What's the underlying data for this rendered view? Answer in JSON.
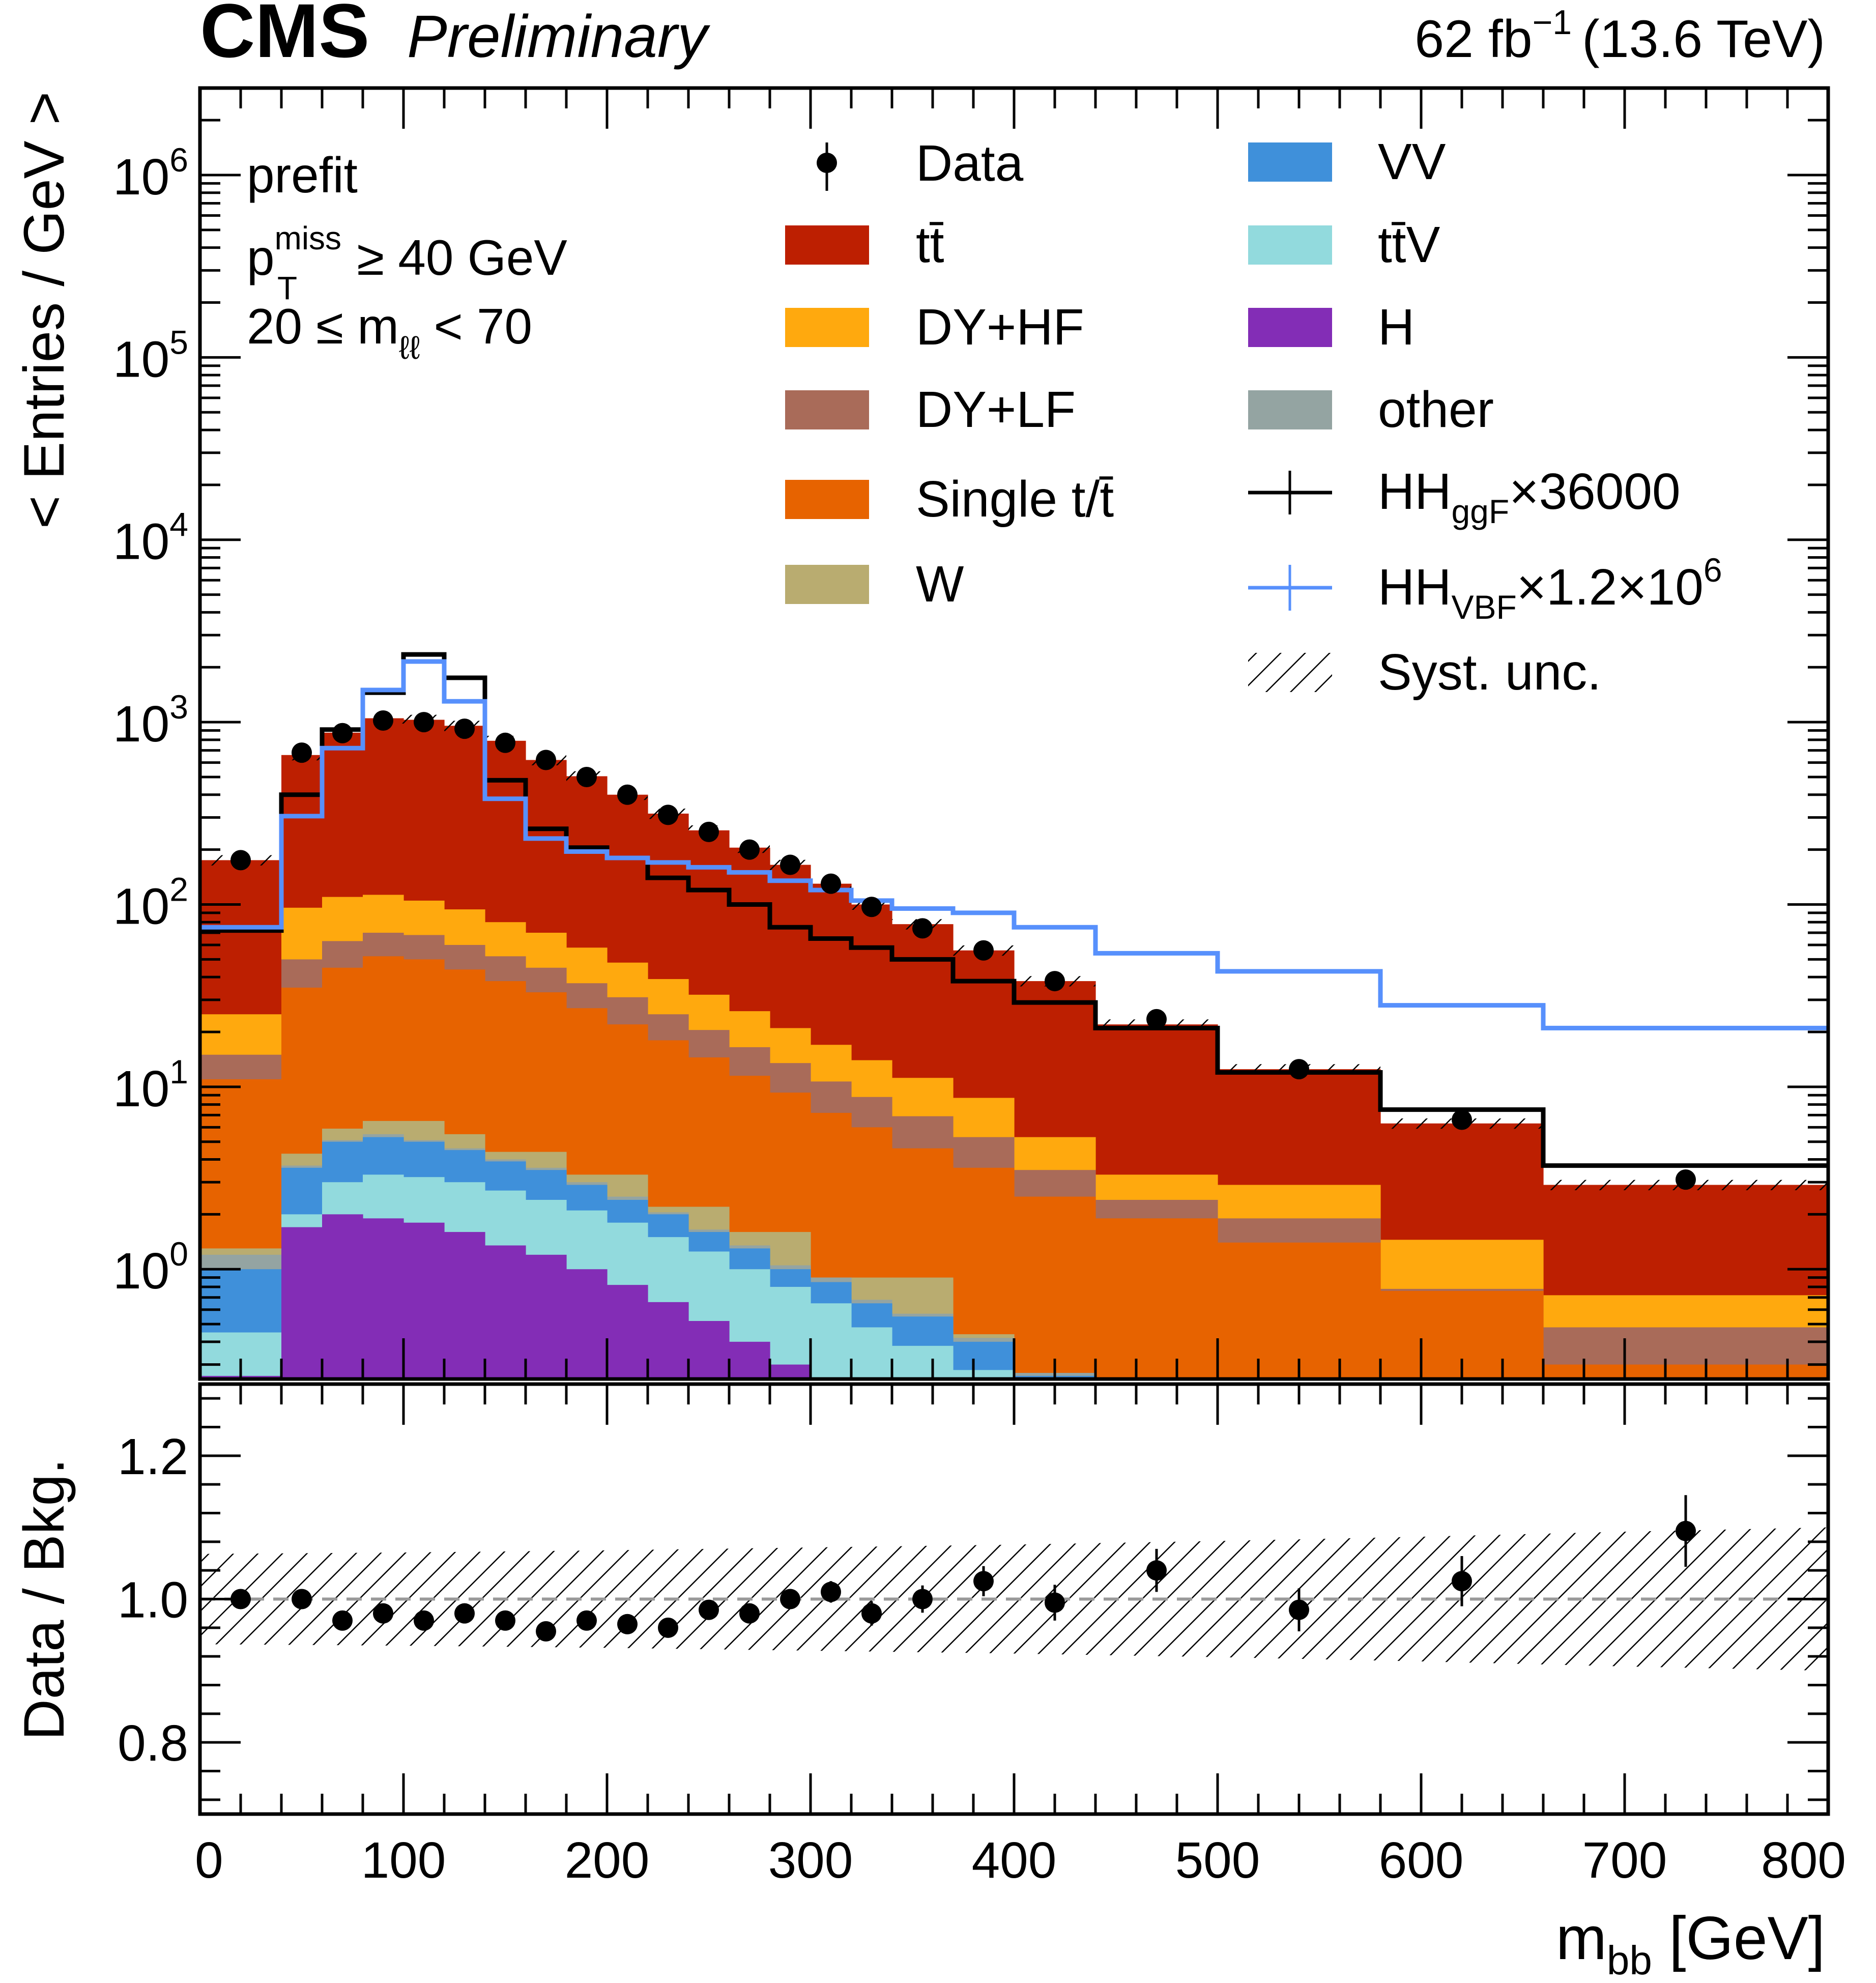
{
  "header": {
    "experiment": "CMS",
    "status": "Preliminary",
    "lumi_value": "62 fb",
    "lumi_exp": "−1",
    "energy": "(13.6 TeV)"
  },
  "annotations": {
    "line1": "prefit",
    "line2_base": "p",
    "line2_sup": "miss",
    "line2_sub": "T",
    "line2_rest": " ≥ 40 GeV",
    "line3": "20 ≤ m",
    "line3_sub": "ℓℓ",
    "line3_rest": " < 70"
  },
  "legend": {
    "data": "Data",
    "ttbar": "tt̄",
    "dyhf": "DY+HF",
    "dylf": "DY+LF",
    "singlet": "Single t/t̄",
    "w": "W",
    "vv": "VV",
    "ttv": "tt̄V",
    "h": "H",
    "other": "other",
    "hhggf": "HH",
    "hhggf_sub": "ggF",
    "hhggf_scale": "×36000",
    "hhvbf": "HH",
    "hhvbf_sub": "VBF",
    "hhvbf_scale": "×1.2×10",
    "hhvbf_exp": "6",
    "syst": "Syst. unc."
  },
  "colors": {
    "ttbar": "#bd1f01",
    "dyhf": "#ffa90e",
    "dylf": "#a96b59",
    "singlet": "#e76300",
    "w": "#b9ac70",
    "vv": "#3f90da",
    "ttv": "#92dadd",
    "h": "#832db6",
    "other": "#94a4a2",
    "hhggf": "#000000",
    "hhvbf": "#5790fc"
  },
  "chart_data": [
    {
      "type": "stacked_histogram",
      "panel": "upper",
      "ylabel": "< Entries / GeV >",
      "yscale": "log",
      "ylim": [
        0.25,
        3000000
      ],
      "xlim": [
        0,
        800
      ],
      "ytick_labels": [
        {
          "base": "10",
          "exp": "0",
          "value": 1
        },
        {
          "base": "10",
          "exp": "1",
          "value": 10
        },
        {
          "base": "10",
          "exp": "2",
          "value": 100
        },
        {
          "base": "10",
          "exp": "3",
          "value": 1000
        },
        {
          "base": "10",
          "exp": "4",
          "value": 10000
        },
        {
          "base": "10",
          "exp": "5",
          "value": 100000
        },
        {
          "base": "10",
          "exp": "6",
          "value": 1000000
        }
      ],
      "bin_edges": [
        0,
        40,
        60,
        80,
        100,
        120,
        140,
        160,
        180,
        200,
        220,
        240,
        260,
        280,
        300,
        320,
        340,
        370,
        400,
        440,
        500,
        580,
        660,
        800
      ],
      "stack_order": [
        "h",
        "ttv",
        "vv",
        "other",
        "w",
        "singlet",
        "dylf",
        "dyhf",
        "ttbar"
      ],
      "cumulative_totals": {
        "h": [
          0.26,
          1.7,
          2.0,
          1.9,
          1.8,
          1.6,
          1.35,
          1.2,
          1.0,
          0.82,
          0.66,
          0.52,
          0.4,
          0.3,
          0.25,
          0.2,
          0.2,
          0.2,
          0.2,
          0.2,
          0.2,
          0.2,
          0.2
        ],
        "ttv": [
          0.45,
          2.0,
          3.0,
          3.3,
          3.2,
          3.0,
          2.7,
          2.4,
          2.1,
          1.8,
          1.5,
          1.25,
          1.0,
          0.8,
          0.65,
          0.48,
          0.38,
          0.28,
          0.2,
          0.2,
          0.2,
          0.2,
          0.2
        ],
        "vv": [
          1.0,
          3.6,
          5.0,
          5.3,
          5.0,
          4.5,
          3.9,
          3.5,
          2.9,
          2.4,
          2.0,
          1.6,
          1.3,
          1.0,
          0.85,
          0.65,
          0.55,
          0.4,
          0.26,
          0.2,
          0.2,
          0.2,
          0.2
        ],
        "other": [
          1.2,
          3.7,
          5.1,
          5.5,
          5.1,
          4.6,
          4.0,
          3.6,
          3.0,
          2.5,
          2.05,
          1.65,
          1.35,
          1.05,
          0.9,
          0.68,
          0.57,
          0.42,
          0.27,
          0.21,
          0.21,
          0.21,
          0.21
        ],
        "w": [
          1.3,
          4.3,
          5.9,
          6.5,
          6.5,
          5.5,
          4.4,
          4.4,
          3.3,
          3.3,
          2.2,
          2.2,
          1.6,
          1.6,
          0.9,
          0.9,
          0.9,
          0.44,
          0.27,
          0.22,
          0.21,
          0.21,
          0.21
        ],
        "singlet": [
          11,
          35,
          45,
          52,
          50,
          44,
          38,
          33,
          27,
          22,
          18,
          14.5,
          11.5,
          9.3,
          7.2,
          6.0,
          4.6,
          3.6,
          2.5,
          1.9,
          1.4,
          0.76,
          0.3
        ],
        "dylf": [
          15,
          50,
          63,
          70,
          68,
          60,
          52,
          45,
          37,
          31,
          25,
          20.5,
          16.5,
          13.5,
          10.7,
          8.8,
          6.9,
          5.3,
          3.5,
          2.4,
          1.9,
          0.78,
          0.48
        ],
        "dyhf": [
          25,
          96,
          110,
          113,
          105,
          94,
          80,
          70,
          58,
          48,
          39,
          32,
          26,
          21,
          17,
          14,
          11.2,
          8.7,
          5.3,
          3.3,
          2.9,
          1.45,
          0.72
        ],
        "ttbar": [
          175,
          660,
          875,
          1050,
          1030,
          955,
          790,
          620,
          505,
          400,
          315,
          255,
          205,
          165,
          130,
          100,
          78,
          56,
          38,
          22,
          12.5,
          6.3,
          2.9
        ]
      },
      "data_points": {
        "x": [
          20,
          50,
          70,
          90,
          110,
          130,
          150,
          170,
          190,
          210,
          230,
          250,
          270,
          290,
          310,
          330,
          355,
          385,
          420,
          470,
          540,
          620,
          730
        ],
        "y": [
          175,
          680,
          870,
          1020,
          1000,
          920,
          770,
          620,
          500,
          400,
          310,
          250,
          200,
          165,
          130,
          97,
          74,
          56,
          38,
          23.5,
          12.5,
          6.6,
          3.1
        ],
        "yerr": [
          4,
          7,
          9,
          10,
          10,
          9,
          8,
          8,
          7,
          6,
          5,
          5,
          4,
          4,
          3.5,
          3,
          2.5,
          2,
          1.5,
          1.0,
          0.6,
          0.4,
          0.3
        ]
      },
      "hh_ggF_x36000": [
        72,
        400,
        910,
        1450,
        2350,
        1750,
        480,
        260,
        205,
        180,
        140,
        120,
        100,
        75,
        65,
        58,
        50,
        38,
        29,
        21,
        12,
        7.5,
        3.7
      ],
      "hh_VBF_x1.2e6": [
        75,
        305,
        720,
        1500,
        2150,
        1300,
        380,
        230,
        195,
        180,
        170,
        160,
        150,
        135,
        120,
        105,
        95,
        90,
        75,
        54,
        43,
        28,
        21
      ],
      "syst_rel": 0.065
    },
    {
      "type": "ratio",
      "panel": "lower",
      "ylabel": "Data / Bkg.",
      "xlabel_base": "m",
      "xlabel_sub": "bb",
      "xlabel_rest": " [GeV]",
      "ylim": [
        0.7,
        1.3
      ],
      "xlim": [
        0,
        800
      ],
      "ytick_labels": [
        "0.8",
        "1.0",
        "1.2"
      ],
      "ytick_values": [
        0.8,
        1.0,
        1.2
      ],
      "xtick_labels": [
        "0",
        "100",
        "200",
        "300",
        "400",
        "500",
        "600",
        "700",
        "800"
      ],
      "xtick_values": [
        0,
        100,
        200,
        300,
        400,
        500,
        600,
        700,
        800
      ],
      "points": {
        "x": [
          20,
          50,
          70,
          90,
          110,
          130,
          150,
          170,
          190,
          210,
          230,
          250,
          270,
          290,
          310,
          330,
          355,
          385,
          420,
          470,
          540,
          620,
          730
        ],
        "y": [
          1.0,
          1.0,
          0.97,
          0.98,
          0.97,
          0.98,
          0.97,
          0.955,
          0.97,
          0.965,
          0.96,
          0.985,
          0.98,
          1.0,
          1.01,
          0.98,
          1.0,
          1.025,
          0.995,
          1.04,
          0.985,
          1.025,
          1.095
        ],
        "yerr": [
          0.01,
          0.007,
          0.008,
          0.008,
          0.008,
          0.008,
          0.008,
          0.009,
          0.009,
          0.009,
          0.01,
          0.011,
          0.012,
          0.014,
          0.015,
          0.017,
          0.019,
          0.021,
          0.025,
          0.03,
          0.03,
          0.035,
          0.05
        ]
      },
      "syst_band": {
        "x": [
          0,
          100,
          200,
          300,
          400,
          500,
          600,
          700,
          800
        ],
        "up": [
          1.063,
          1.065,
          1.068,
          1.072,
          1.076,
          1.081,
          1.087,
          1.094,
          1.1
        ],
        "dn": [
          0.937,
          0.935,
          0.932,
          0.928,
          0.924,
          0.919,
          0.913,
          0.906,
          0.9
        ]
      }
    }
  ]
}
